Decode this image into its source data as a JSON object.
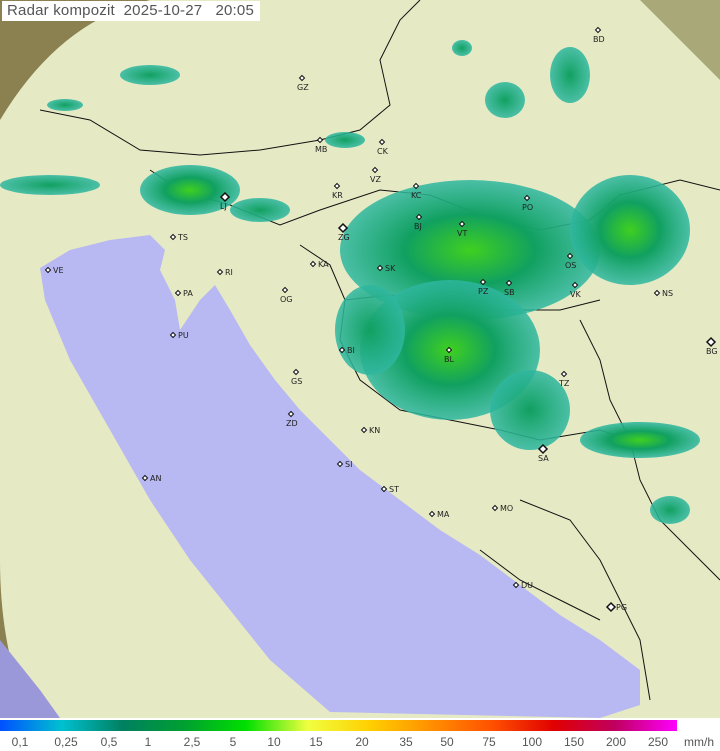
{
  "title": {
    "product": "Radar kompozit",
    "date": "2025-10-27",
    "time": "20:05"
  },
  "colors": {
    "terrain_outside": "#8a8050",
    "coverage": "#e9eec9",
    "sea": "#b7b8f0",
    "radar_light": "#2fb7a0",
    "radar_mid": "#11a060",
    "radar_strong": "#3fd020"
  },
  "legend": {
    "unit": "mm/h",
    "labels": [
      "0,1",
      "0,25",
      "0,5",
      "1",
      "2,5",
      "5",
      "10",
      "15",
      "20",
      "35",
      "50",
      "75",
      "100",
      "150",
      "200",
      "250"
    ],
    "gradient": [
      "#0050ff",
      "#00c0d0",
      "#008060",
      "#00a030",
      "#00e000",
      "#f0ff40",
      "#ffd000",
      "#ff9000",
      "#ff5000",
      "#e00000",
      "#c00060",
      "#ff00ff"
    ]
  },
  "cities": [
    {
      "code": "BD",
      "icon": "diamond"
    },
    {
      "code": "GZ",
      "icon": "diamond"
    },
    {
      "code": "MB",
      "icon": "diamond"
    },
    {
      "code": "CK",
      "icon": "diamond"
    },
    {
      "code": "VZ",
      "icon": "diamond"
    },
    {
      "code": "KR",
      "icon": "diamond"
    },
    {
      "code": "KC",
      "icon": "diamond"
    },
    {
      "code": "LJ",
      "icon": "capital"
    },
    {
      "code": "BJ",
      "icon": "diamond"
    },
    {
      "code": "VT",
      "icon": "diamond"
    },
    {
      "code": "PO",
      "icon": "diamond"
    },
    {
      "code": "ZG",
      "icon": "capital"
    },
    {
      "code": "TS",
      "icon": "diamond"
    },
    {
      "code": "VE",
      "icon": "diamond"
    },
    {
      "code": "RI",
      "icon": "diamond"
    },
    {
      "code": "KA",
      "icon": "diamond"
    },
    {
      "code": "SK",
      "icon": "diamond"
    },
    {
      "code": "OS",
      "icon": "diamond"
    },
    {
      "code": "VK",
      "icon": "diamond"
    },
    {
      "code": "NS",
      "icon": "diamond"
    },
    {
      "code": "PA",
      "icon": "diamond"
    },
    {
      "code": "PZ",
      "icon": "diamond"
    },
    {
      "code": "SB",
      "icon": "diamond"
    },
    {
      "code": "OG",
      "icon": "diamond"
    },
    {
      "code": "PU",
      "icon": "diamond"
    },
    {
      "code": "BI",
      "icon": "diamond"
    },
    {
      "code": "BL",
      "icon": "diamond"
    },
    {
      "code": "BG",
      "icon": "capital"
    },
    {
      "code": "TZ",
      "icon": "diamond"
    },
    {
      "code": "GS",
      "icon": "diamond"
    },
    {
      "code": "ZD",
      "icon": "diamond"
    },
    {
      "code": "KN",
      "icon": "diamond"
    },
    {
      "code": "SA",
      "icon": "capital"
    },
    {
      "code": "SI",
      "icon": "diamond"
    },
    {
      "code": "AN",
      "icon": "diamond"
    },
    {
      "code": "ST",
      "icon": "diamond"
    },
    {
      "code": "MA",
      "icon": "diamond"
    },
    {
      "code": "MO",
      "icon": "diamond"
    },
    {
      "code": "DU",
      "icon": "diamond"
    },
    {
      "code": "PG",
      "icon": "capital"
    }
  ]
}
